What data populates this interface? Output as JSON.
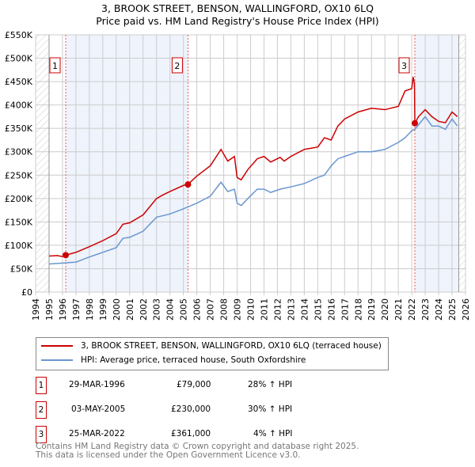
{
  "chart_data": {
    "type": "line",
    "title": [
      "3, BROOK STREET, BENSON, WALLINGFORD, OX10 6LQ",
      "Price paid vs. HM Land Registry's House Price Index (HPI)"
    ],
    "xlim": [
      1994,
      2026
    ],
    "ylim": [
      0,
      550000
    ],
    "x_ticks": [
      "1994",
      "1995",
      "1996",
      "1997",
      "1998",
      "1999",
      "2000",
      "2001",
      "2002",
      "2003",
      "2004",
      "2005",
      "2006",
      "2007",
      "2008",
      "2009",
      "2010",
      "2011",
      "2012",
      "2013",
      "2014",
      "2015",
      "2016",
      "2017",
      "2018",
      "2019",
      "2020",
      "2021",
      "2022",
      "2023",
      "2024",
      "2025",
      "2026"
    ],
    "y_ticks": [
      {
        "v": 0,
        "l": "£0"
      },
      {
        "v": 50000,
        "l": "£50K"
      },
      {
        "v": 100000,
        "l": "£100K"
      },
      {
        "v": 150000,
        "l": "£150K"
      },
      {
        "v": 200000,
        "l": "£200K"
      },
      {
        "v": 250000,
        "l": "£250K"
      },
      {
        "v": 300000,
        "l": "£300K"
      },
      {
        "v": 350000,
        "l": "£350K"
      },
      {
        "v": 400000,
        "l": "£400K"
      },
      {
        "v": 450000,
        "l": "£450K"
      },
      {
        "v": 500000,
        "l": "£500K"
      },
      {
        "v": 550000,
        "l": "£550K"
      }
    ],
    "series": [
      {
        "name": "3, BROOK STREET, BENSON, WALLINGFORD, OX10 6LQ (terraced house)",
        "color": "#cc0000",
        "points": [
          [
            1995,
            77
          ],
          [
            1995.6,
            78
          ],
          [
            1996,
            76
          ],
          [
            1996.25,
            79
          ],
          [
            1997,
            85
          ],
          [
            1998,
            97
          ],
          [
            1999,
            110
          ],
          [
            2000,
            125
          ],
          [
            2000.5,
            145
          ],
          [
            2001,
            148
          ],
          [
            2002,
            165
          ],
          [
            2003,
            200
          ],
          [
            2003.5,
            208
          ],
          [
            2004,
            215
          ],
          [
            2005,
            228
          ],
          [
            2005.33,
            230
          ],
          [
            2006,
            248
          ],
          [
            2007,
            270
          ],
          [
            2007.8,
            305
          ],
          [
            2008.3,
            280
          ],
          [
            2008.8,
            290
          ],
          [
            2009,
            245
          ],
          [
            2009.3,
            240
          ],
          [
            2009.8,
            262
          ],
          [
            2010.5,
            285
          ],
          [
            2011,
            290
          ],
          [
            2011.5,
            278
          ],
          [
            2012.2,
            288
          ],
          [
            2012.5,
            280
          ],
          [
            2013,
            290
          ],
          [
            2014,
            305
          ],
          [
            2015,
            310
          ],
          [
            2015.5,
            330
          ],
          [
            2016,
            325
          ],
          [
            2016.5,
            355
          ],
          [
            2017,
            370
          ],
          [
            2018,
            385
          ],
          [
            2019,
            393
          ],
          [
            2020,
            390
          ],
          [
            2021,
            397
          ],
          [
            2021.5,
            430
          ],
          [
            2022,
            435
          ],
          [
            2022.1,
            460
          ],
          [
            2022.2,
            445
          ],
          [
            2022.23,
            361
          ],
          [
            2022.5,
            375
          ],
          [
            2023,
            390
          ],
          [
            2023.5,
            375
          ],
          [
            2024,
            365
          ],
          [
            2024.5,
            362
          ],
          [
            2025,
            385
          ],
          [
            2025.4,
            375
          ]
        ]
      },
      {
        "name": "HPI: Average price, terraced house, South Oxfordshire",
        "color": "#6a96d0",
        "points": [
          [
            1995,
            60
          ],
          [
            1996,
            62
          ],
          [
            1997,
            64
          ],
          [
            1998,
            75
          ],
          [
            1999,
            85
          ],
          [
            2000,
            95
          ],
          [
            2000.5,
            115
          ],
          [
            2001,
            117
          ],
          [
            2002,
            130
          ],
          [
            2003,
            160
          ],
          [
            2004,
            167
          ],
          [
            2005,
            178
          ],
          [
            2006,
            190
          ],
          [
            2007,
            205
          ],
          [
            2007.8,
            235
          ],
          [
            2008.3,
            215
          ],
          [
            2008.8,
            220
          ],
          [
            2009,
            190
          ],
          [
            2009.3,
            185
          ],
          [
            2009.8,
            200
          ],
          [
            2010.5,
            220
          ],
          [
            2011,
            220
          ],
          [
            2011.5,
            213
          ],
          [
            2012.2,
            220
          ],
          [
            2013,
            225
          ],
          [
            2014,
            232
          ],
          [
            2015,
            245
          ],
          [
            2015.5,
            250
          ],
          [
            2016,
            270
          ],
          [
            2016.5,
            285
          ],
          [
            2017,
            290
          ],
          [
            2018,
            300
          ],
          [
            2019,
            300
          ],
          [
            2020,
            305
          ],
          [
            2021,
            320
          ],
          [
            2021.5,
            330
          ],
          [
            2022,
            345
          ],
          [
            2022.23,
            348
          ],
          [
            2023,
            375
          ],
          [
            2023.5,
            355
          ],
          [
            2024,
            355
          ],
          [
            2024.5,
            348
          ],
          [
            2025,
            370
          ],
          [
            2025.4,
            355
          ]
        ]
      }
    ],
    "sales": [
      {
        "id": "1",
        "x": 1996.24,
        "y": 79000
      },
      {
        "id": "2",
        "x": 2005.34,
        "y": 230000
      },
      {
        "id": "3",
        "x": 2022.23,
        "y": 361000
      }
    ],
    "legend": [
      "3, BROOK STREET, BENSON, WALLINGFORD, OX10 6LQ (terraced house)",
      "HPI: Average price, terraced house, South Oxfordshire"
    ],
    "grid": true
  },
  "transactions": [
    {
      "id": "1",
      "date": "29-MAR-1996",
      "price": "£79,000",
      "hpi": "28% ↑ HPI"
    },
    {
      "id": "2",
      "date": "03-MAY-2005",
      "price": "£230,000",
      "hpi": "30% ↑ HPI"
    },
    {
      "id": "3",
      "date": "25-MAR-2022",
      "price": "£361,000",
      "hpi": "4% ↑ HPI"
    }
  ],
  "footer": [
    "Contains HM Land Registry data © Crown copyright and database right 2025.",
    "This data is licensed under the Open Government Licence v3.0."
  ]
}
